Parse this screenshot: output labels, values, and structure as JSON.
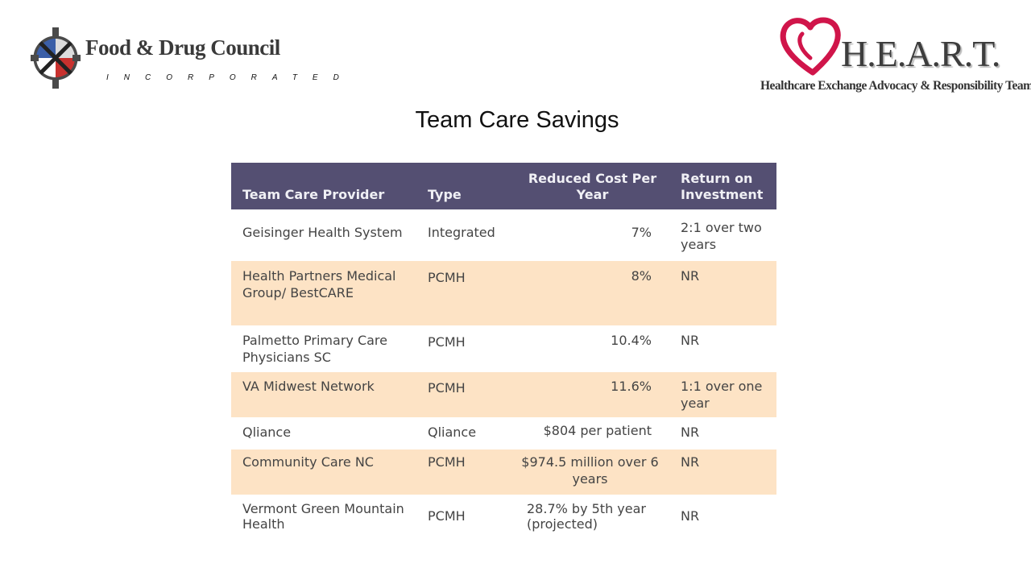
{
  "logos": {
    "left": {
      "name": "Food & Drug Council",
      "sub": "INCORPORATED"
    },
    "right": {
      "name": "H.E.A.R.T.",
      "tagline": "Healthcare Exchange Advocacy & Responsibility Team"
    }
  },
  "title": "Team Care Savings",
  "table": {
    "headers": [
      "Team Care Provider",
      "Type",
      "Reduced Cost Per Year",
      "Return on Investment"
    ],
    "rows": [
      {
        "provider": "Geisinger Health System",
        "type": "Integrated",
        "cost": "7%",
        "roi": "2:1 over two years"
      },
      {
        "provider": "Health Partners Medical Group/ BestCARE",
        "type": "PCMH",
        "cost": "8%",
        "roi": "NR"
      },
      {
        "provider": "Palmetto Primary Care Physicians SC",
        "type": "PCMH",
        "cost": "10.4%",
        "roi": "NR"
      },
      {
        "provider": "VA Midwest Network",
        "type": "PCMH",
        "cost": "11.6%",
        "roi": "1:1 over one year"
      },
      {
        "provider": "Qliance",
        "type": "Qliance",
        "cost": "$804 per patient",
        "roi": "NR"
      },
      {
        "provider": "Community Care NC",
        "type": "PCMH",
        "cost": "$974.5 million over 6 years",
        "roi": "NR"
      },
      {
        "provider": "Vermont Green Mountain Health",
        "type": "PCMH",
        "cost": "28.7% by 5th year (projected)",
        "roi": "NR"
      }
    ]
  }
}
